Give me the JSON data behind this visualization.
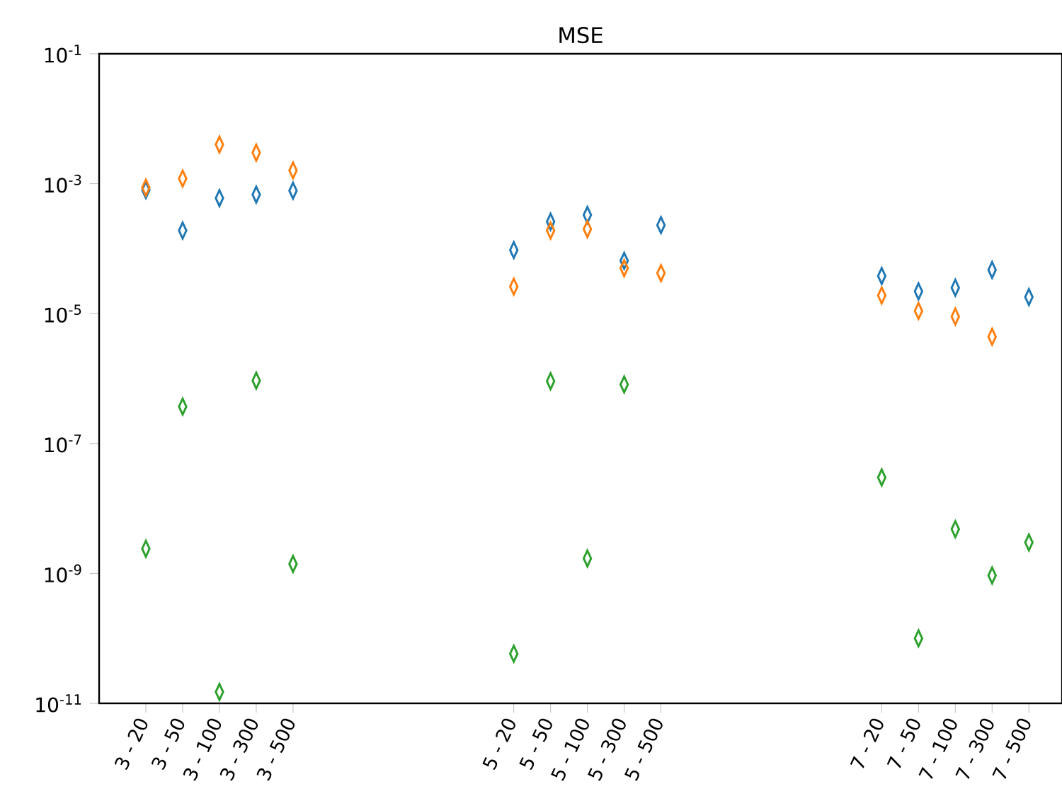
{
  "chart_data": {
    "type": "scatter",
    "title": "MSE",
    "marker": "diamond",
    "log": "y",
    "ylim": [
      1e-11,
      0.1
    ],
    "yticks": [
      {
        "value": 1e-11,
        "label": "10$^{-11}$"
      },
      {
        "value": 1e-09,
        "label": "10$^{-9}$"
      },
      {
        "value": 1e-07,
        "label": "10$^{-7}$"
      },
      {
        "value": 1e-05,
        "label": "10$^{-5}$"
      },
      {
        "value": 0.001,
        "label": "10$^{-3}$"
      },
      {
        "value": 0.1,
        "label": "10$^{-1}$"
      }
    ],
    "categories": [
      "3 - 20",
      "3 - 50",
      "3 - 100",
      "3 - 300",
      "3 - 500",
      null,
      null,
      null,
      null,
      null,
      "5 - 20",
      "5 - 50",
      "5 - 100",
      "5 - 300",
      "5 - 500",
      null,
      null,
      null,
      null,
      null,
      "7 - 20",
      "7 - 50",
      "7 - 100",
      "7 - 300",
      "7 - 500"
    ],
    "series": [
      {
        "color": "#1f77b4",
        "values": [
          0.0008,
          0.00019,
          0.0006,
          0.00068,
          0.00078,
          null,
          null,
          null,
          null,
          null,
          9.5e-05,
          0.00026,
          0.00033,
          6.5e-05,
          0.00023,
          null,
          null,
          null,
          null,
          null,
          3.8e-05,
          2.2e-05,
          2.5e-05,
          4.7e-05,
          1.8e-05
        ]
      },
      {
        "color": "#ff7f0e",
        "values": [
          0.00087,
          0.0012,
          0.004,
          0.003,
          0.0016,
          null,
          null,
          null,
          null,
          null,
          2.6e-05,
          0.00019,
          0.0002,
          5e-05,
          4.2e-05,
          null,
          null,
          null,
          null,
          null,
          1.9e-05,
          1.1e-05,
          9e-06,
          4.4e-06,
          null
        ]
      },
      {
        "color": "#2ca02c",
        "values": [
          2.4e-09,
          3.7e-07,
          1.5e-11,
          9.3e-07,
          1.4e-09,
          null,
          null,
          null,
          null,
          null,
          5.8e-11,
          9.1e-07,
          1.7e-09,
          8.1e-07,
          null,
          null,
          null,
          null,
          null,
          null,
          3e-08,
          1e-10,
          4.8e-09,
          9.3e-10,
          3e-09
        ]
      }
    ]
  }
}
